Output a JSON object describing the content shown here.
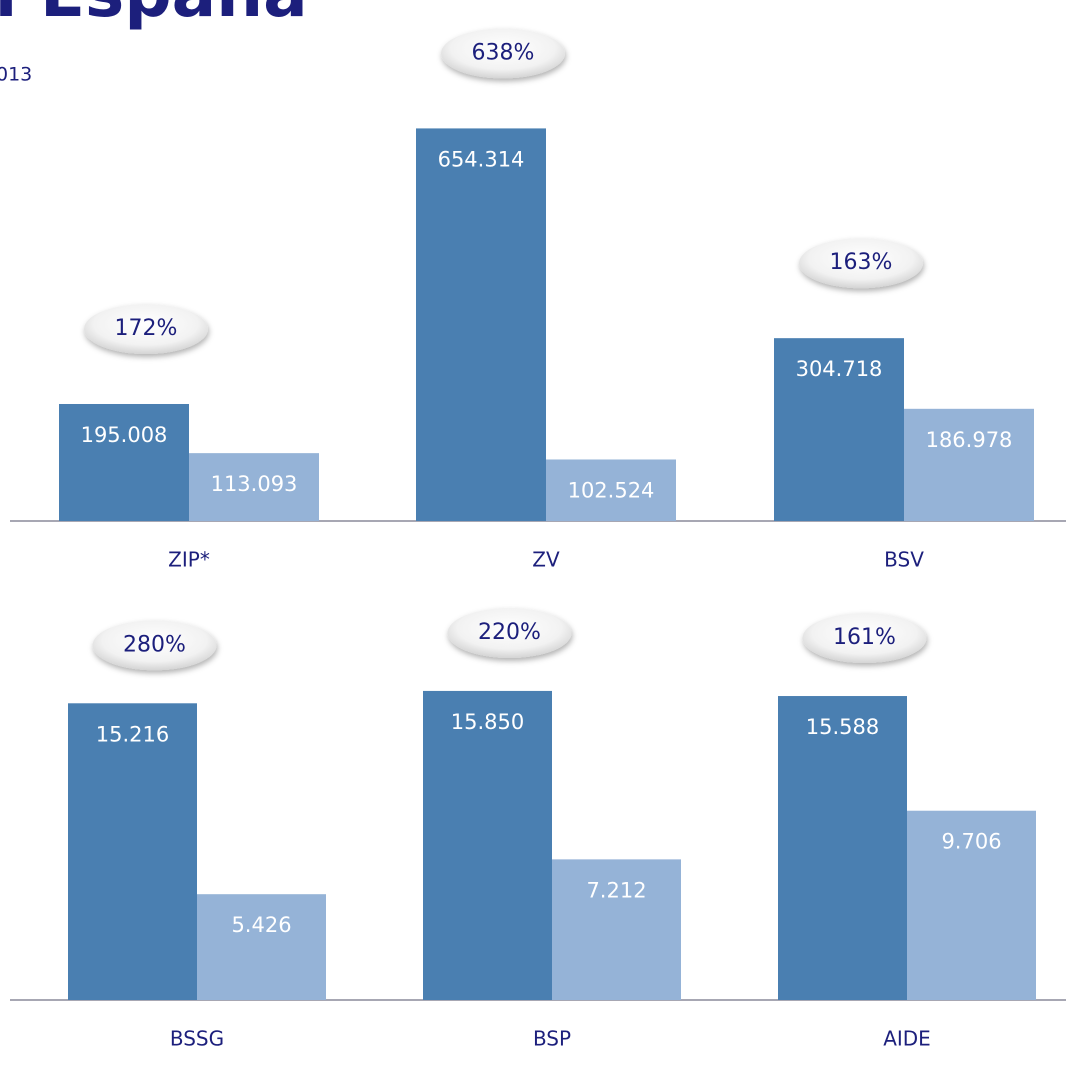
{
  "title": "n España",
  "subtitle": "013",
  "chart_data": [
    {
      "type": "bar",
      "categories": [
        "ZIP*",
        "ZV",
        "BSV"
      ],
      "series": [
        {
          "color": "#4a7fb1",
          "values": [
            195008,
            654314,
            304718
          ],
          "value_labels": [
            "195.008",
            "654.314",
            "304.718"
          ]
        },
        {
          "color": "#95b3d7",
          "values": [
            113093,
            102524,
            186978
          ],
          "value_labels": [
            "113.093",
            "102.524",
            "186.978"
          ]
        }
      ],
      "annotations": [
        {
          "value": 172,
          "label": "172%"
        },
        {
          "value": 638,
          "label": "638%"
        },
        {
          "value": 163,
          "label": "163%"
        }
      ],
      "ylim": [
        0,
        660000
      ]
    },
    {
      "type": "bar",
      "categories": [
        "BSSG",
        "BSP",
        "AIDE"
      ],
      "series": [
        {
          "color": "#4a7fb1",
          "values": [
            15216,
            15850,
            15588
          ],
          "value_labels": [
            "15.216",
            "15.850",
            "15.588"
          ]
        },
        {
          "color": "#95b3d7",
          "values": [
            5426,
            7212,
            9706
          ],
          "value_labels": [
            "5.426",
            "7.212",
            "9.706"
          ]
        }
      ],
      "annotations": [
        {
          "value": 280,
          "label": "280%"
        },
        {
          "value": 220,
          "label": "220%"
        },
        {
          "value": 161,
          "label": "161%"
        }
      ],
      "ylim": [
        0,
        16000
      ]
    }
  ]
}
